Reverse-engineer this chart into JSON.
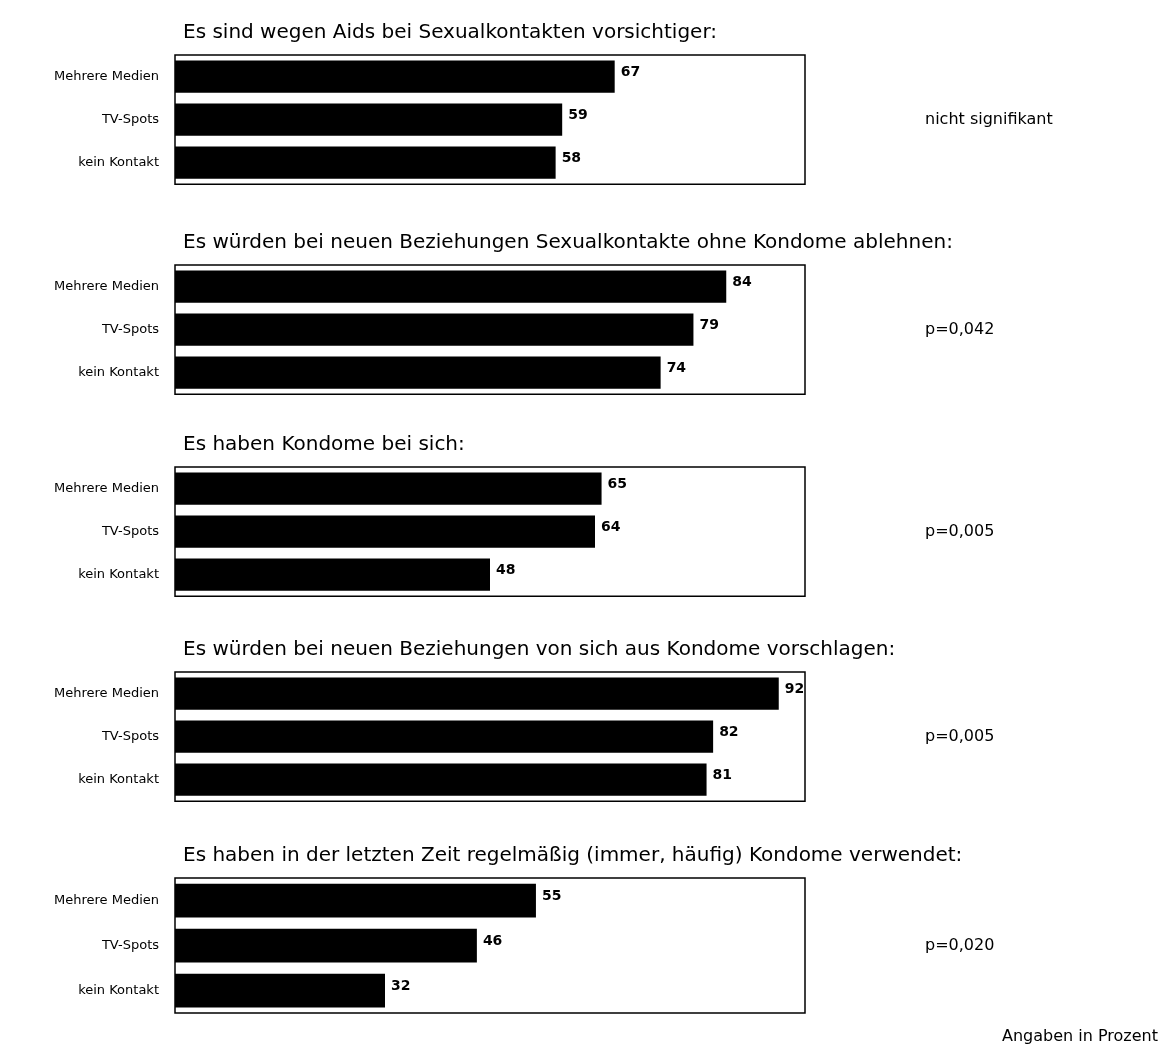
{
  "chart_data": [
    {
      "type": "bar",
      "orientation": "horizontal",
      "title": "Es sind wegen Aids bei Sexualkontakten vorsichtiger:",
      "categories": [
        "Mehrere Medien",
        "TV-Spots",
        "kein Kontakt"
      ],
      "values": [
        67,
        59,
        58
      ],
      "color": "#000000",
      "xlim": [
        0,
        96
      ],
      "data_labels": true,
      "legend": false,
      "annotations": [
        "nicht signifikant"
      ]
    },
    {
      "type": "bar",
      "orientation": "horizontal",
      "title": "Es würden bei neuen Beziehungen Sexualkontakte ohne Kondome ablehnen:",
      "categories": [
        "Mehrere Medien",
        "TV-Spots",
        "kein Kontakt"
      ],
      "values": [
        84,
        79,
        74
      ],
      "color": "#000000",
      "xlim": [
        0,
        96
      ],
      "data_labels": true,
      "legend": false,
      "annotations": [
        "p=0,042"
      ]
    },
    {
      "type": "bar",
      "orientation": "horizontal",
      "title": "Es haben Kondome bei sich:",
      "categories": [
        "Mehrere Medien",
        "TV-Spots",
        "kein Kontakt"
      ],
      "values": [
        65,
        64,
        48
      ],
      "color": "#000000",
      "xlim": [
        0,
        96
      ],
      "data_labels": true,
      "legend": false,
      "annotations": [
        "p=0,005"
      ]
    },
    {
      "type": "bar",
      "orientation": "horizontal",
      "title": "Es würden bei neuen Beziehungen von sich aus Kondome vorschlagen:",
      "categories": [
        "Mehrere Medien",
        "TV-Spots",
        "kein Kontakt"
      ],
      "values": [
        92,
        82,
        81
      ],
      "color": "#000000",
      "xlim": [
        0,
        96
      ],
      "data_labels": true,
      "legend": false,
      "annotations": [
        "p=0,005"
      ]
    },
    {
      "type": "bar",
      "orientation": "horizontal",
      "title": "Es haben in der letzten Zeit regelmäßig (immer, häufig) Kondome verwendet:",
      "categories": [
        "Mehrere Medien",
        "TV-Spots",
        "kein Kontakt"
      ],
      "values": [
        55,
        46,
        32
      ],
      "color": "#000000",
      "xlim": [
        0,
        96
      ],
      "data_labels": true,
      "legend": false,
      "annotations": [
        "p=0,020",
        "Angaben in Prozent"
      ]
    }
  ]
}
